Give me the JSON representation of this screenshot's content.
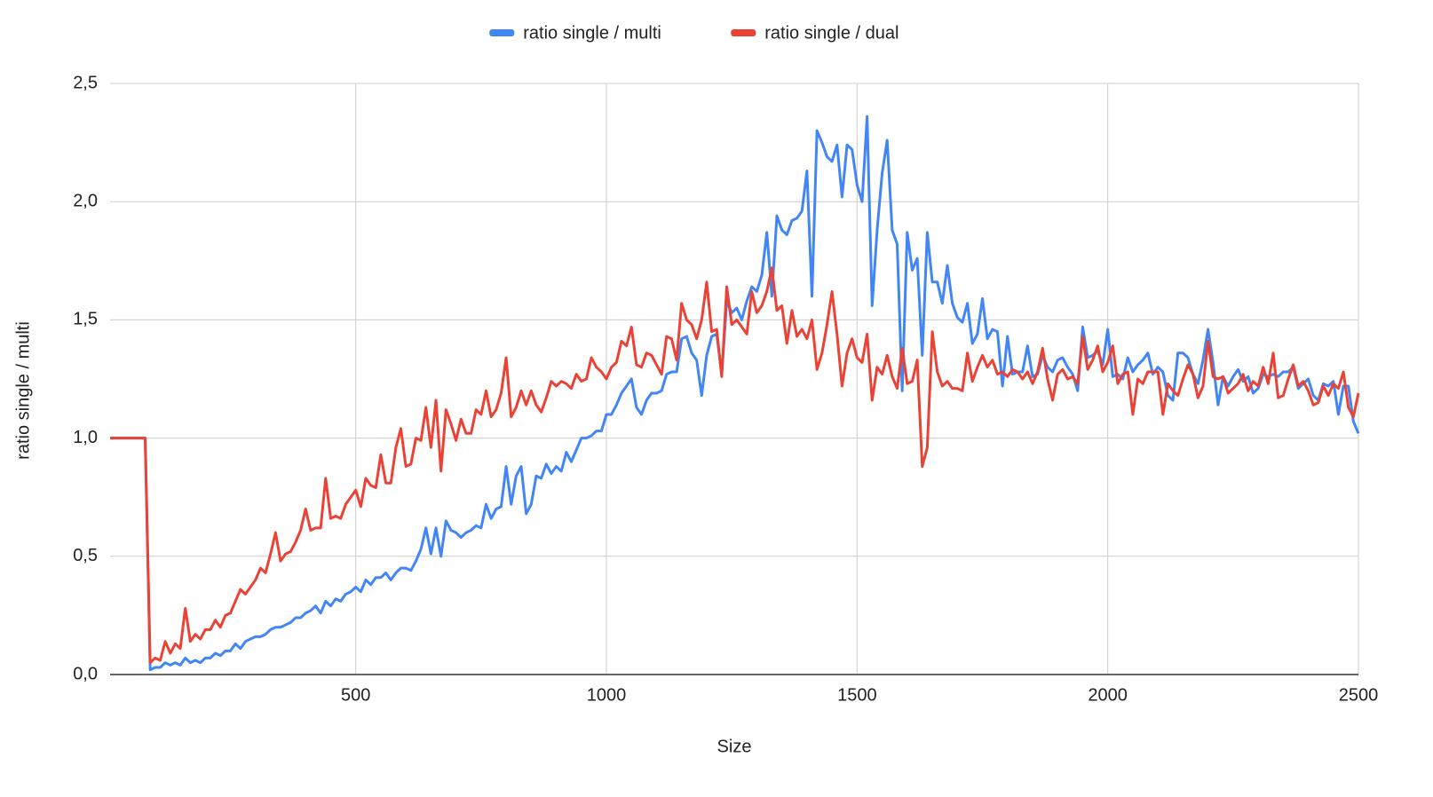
{
  "chart_data": {
    "type": "line",
    "y_label": "ratio single / multi",
    "x_label": "Size",
    "xlim": [
      10,
      2500
    ],
    "xticks": [
      500,
      1000,
      1500,
      2000,
      2500
    ],
    "ylim": [
      0,
      2.5
    ],
    "yticks": [
      {
        "value": 0,
        "label": "0,0"
      },
      {
        "value": 0.5,
        "label": "0,5"
      },
      {
        "value": 1,
        "label": "1,0"
      },
      {
        "value": 1.5,
        "label": "1,5"
      },
      {
        "value": 2,
        "label": "2,0"
      },
      {
        "value": 2.5,
        "label": "2,5"
      }
    ],
    "grid": true,
    "legend": "top",
    "x": [
      10,
      20,
      30,
      40,
      50,
      60,
      70,
      80,
      90,
      100,
      110,
      120,
      130,
      140,
      150,
      160,
      170,
      180,
      190,
      200,
      210,
      220,
      230,
      240,
      250,
      260,
      270,
      280,
      290,
      300,
      310,
      320,
      330,
      340,
      350,
      360,
      370,
      380,
      390,
      400,
      410,
      420,
      430,
      440,
      450,
      460,
      470,
      480,
      490,
      500,
      510,
      520,
      530,
      540,
      550,
      560,
      570,
      580,
      590,
      600,
      610,
      620,
      630,
      640,
      650,
      660,
      670,
      680,
      690,
      700,
      710,
      720,
      730,
      740,
      750,
      760,
      770,
      780,
      790,
      800,
      810,
      820,
      830,
      840,
      850,
      860,
      870,
      880,
      890,
      900,
      910,
      920,
      930,
      940,
      950,
      960,
      970,
      980,
      990,
      1000,
      1010,
      1020,
      1030,
      1040,
      1050,
      1060,
      1070,
      1080,
      1090,
      1100,
      1110,
      1120,
      1130,
      1140,
      1150,
      1160,
      1170,
      1180,
      1190,
      1200,
      1210,
      1220,
      1230,
      1240,
      1250,
      1260,
      1270,
      1280,
      1290,
      1300,
      1310,
      1320,
      1330,
      1340,
      1350,
      1360,
      1370,
      1380,
      1390,
      1400,
      1410,
      1420,
      1430,
      1440,
      1450,
      1460,
      1470,
      1480,
      1490,
      1500,
      1510,
      1520,
      1530,
      1540,
      1550,
      1560,
      1570,
      1580,
      1590,
      1600,
      1610,
      1620,
      1630,
      1640,
      1650,
      1660,
      1670,
      1680,
      1690,
      1700,
      1710,
      1720,
      1730,
      1740,
      1750,
      1760,
      1770,
      1780,
      1790,
      1800,
      1810,
      1820,
      1830,
      1840,
      1850,
      1860,
      1870,
      1880,
      1890,
      1900,
      1910,
      1920,
      1930,
      1940,
      1950,
      1960,
      1970,
      1980,
      1990,
      2000,
      2010,
      2020,
      2030,
      2040,
      2050,
      2060,
      2070,
      2080,
      2090,
      2100,
      2110,
      2120,
      2130,
      2140,
      2150,
      2160,
      2170,
      2180,
      2190,
      2200,
      2210,
      2220,
      2230,
      2240,
      2250,
      2260,
      2270,
      2280,
      2290,
      2300,
      2310,
      2320,
      2330,
      2340,
      2350,
      2360,
      2370,
      2380,
      2390,
      2400,
      2410,
      2420,
      2430,
      2440,
      2450,
      2460,
      2470,
      2480,
      2490,
      2500
    ],
    "series": [
      {
        "name": "ratio single / multi",
        "color": "#4285f4",
        "values": [
          1,
          1,
          1,
          1,
          1,
          1,
          1,
          1,
          0.02,
          0.03,
          0.03,
          0.05,
          0.04,
          0.05,
          0.04,
          0.07,
          0.05,
          0.06,
          0.05,
          0.07,
          0.07,
          0.09,
          0.08,
          0.1,
          0.1,
          0.13,
          0.11,
          0.14,
          0.15,
          0.16,
          0.16,
          0.17,
          0.19,
          0.2,
          0.2,
          0.21,
          0.22,
          0.24,
          0.24,
          0.26,
          0.27,
          0.29,
          0.26,
          0.31,
          0.29,
          0.32,
          0.31,
          0.34,
          0.35,
          0.37,
          0.35,
          0.4,
          0.38,
          0.41,
          0.41,
          0.43,
          0.4,
          0.43,
          0.45,
          0.45,
          0.44,
          0.48,
          0.53,
          0.62,
          0.51,
          0.62,
          0.5,
          0.65,
          0.61,
          0.6,
          0.58,
          0.6,
          0.61,
          0.63,
          0.62,
          0.72,
          0.66,
          0.7,
          0.71,
          0.88,
          0.72,
          0.84,
          0.88,
          0.68,
          0.72,
          0.84,
          0.83,
          0.89,
          0.85,
          0.88,
          0.86,
          0.94,
          0.9,
          0.95,
          1.0,
          1.0,
          1.01,
          1.03,
          1.03,
          1.1,
          1.1,
          1.14,
          1.19,
          1.22,
          1.25,
          1.13,
          1.1,
          1.16,
          1.19,
          1.19,
          1.2,
          1.27,
          1.28,
          1.28,
          1.42,
          1.43,
          1.36,
          1.33,
          1.18,
          1.35,
          1.43,
          1.44,
          1.27,
          1.58,
          1.53,
          1.55,
          1.5,
          1.58,
          1.64,
          1.62,
          1.69,
          1.87,
          1.6,
          1.94,
          1.88,
          1.86,
          1.92,
          1.93,
          1.96,
          2.13,
          1.6,
          2.3,
          2.25,
          2.19,
          2.17,
          2.24,
          2.02,
          2.24,
          2.22,
          2.07,
          2.0,
          2.36,
          1.56,
          1.88,
          2.12,
          2.26,
          1.88,
          1.82,
          1.2,
          1.87,
          1.71,
          1.76,
          1.35,
          1.87,
          1.66,
          1.66,
          1.57,
          1.73,
          1.57,
          1.51,
          1.49,
          1.57,
          1.4,
          1.44,
          1.59,
          1.42,
          1.46,
          1.45,
          1.22,
          1.43,
          1.27,
          1.28,
          1.28,
          1.39,
          1.26,
          1.27,
          1.35,
          1.3,
          1.28,
          1.33,
          1.34,
          1.3,
          1.27,
          1.2,
          1.47,
          1.34,
          1.35,
          1.37,
          1.31,
          1.46,
          1.26,
          1.27,
          1.25,
          1.34,
          1.28,
          1.31,
          1.33,
          1.36,
          1.27,
          1.3,
          1.28,
          1.18,
          1.16,
          1.36,
          1.36,
          1.34,
          1.27,
          1.23,
          1.33,
          1.46,
          1.32,
          1.14,
          1.26,
          1.22,
          1.26,
          1.29,
          1.24,
          1.26,
          1.19,
          1.21,
          1.27,
          1.26,
          1.27,
          1.26,
          1.28,
          1.28,
          1.3,
          1.21,
          1.23,
          1.25,
          1.18,
          1.16,
          1.23,
          1.22,
          1.24,
          1.1,
          1.22,
          1.22,
          1.07,
          1.02
        ]
      },
      {
        "name": "ratio single / dual",
        "color": "#ea4335",
        "values": [
          1,
          1,
          1,
          1,
          1,
          1,
          1,
          1,
          0.05,
          0.07,
          0.06,
          0.14,
          0.09,
          0.13,
          0.11,
          0.28,
          0.14,
          0.17,
          0.15,
          0.19,
          0.19,
          0.23,
          0.2,
          0.25,
          0.26,
          0.31,
          0.36,
          0.34,
          0.37,
          0.4,
          0.45,
          0.43,
          0.51,
          0.6,
          0.48,
          0.51,
          0.52,
          0.56,
          0.61,
          0.7,
          0.61,
          0.62,
          0.62,
          0.83,
          0.66,
          0.67,
          0.66,
          0.72,
          0.75,
          0.78,
          0.71,
          0.83,
          0.8,
          0.79,
          0.93,
          0.81,
          0.81,
          0.96,
          1.04,
          0.88,
          0.89,
          1.0,
          0.99,
          1.13,
          0.96,
          1.16,
          0.86,
          1.12,
          1.06,
          0.99,
          1.08,
          1.02,
          1.02,
          1.12,
          1.1,
          1.2,
          1.09,
          1.12,
          1.19,
          1.34,
          1.09,
          1.13,
          1.2,
          1.14,
          1.2,
          1.14,
          1.11,
          1.17,
          1.24,
          1.22,
          1.24,
          1.23,
          1.21,
          1.27,
          1.24,
          1.25,
          1.34,
          1.3,
          1.28,
          1.25,
          1.3,
          1.32,
          1.41,
          1.39,
          1.47,
          1.31,
          1.3,
          1.36,
          1.35,
          1.31,
          1.27,
          1.43,
          1.42,
          1.33,
          1.57,
          1.5,
          1.48,
          1.42,
          1.5,
          1.66,
          1.45,
          1.46,
          1.26,
          1.64,
          1.48,
          1.5,
          1.47,
          1.44,
          1.62,
          1.53,
          1.56,
          1.62,
          1.72,
          1.54,
          1.56,
          1.4,
          1.54,
          1.43,
          1.46,
          1.42,
          1.5,
          1.29,
          1.36,
          1.48,
          1.62,
          1.44,
          1.22,
          1.36,
          1.42,
          1.34,
          1.32,
          1.44,
          1.16,
          1.3,
          1.27,
          1.35,
          1.26,
          1.21,
          1.38,
          1.23,
          1.24,
          1.33,
          0.88,
          0.96,
          1.45,
          1.28,
          1.22,
          1.24,
          1.21,
          1.21,
          1.2,
          1.36,
          1.24,
          1.3,
          1.35,
          1.3,
          1.33,
          1.27,
          1.28,
          1.26,
          1.29,
          1.28,
          1.25,
          1.28,
          1.23,
          1.28,
          1.38,
          1.25,
          1.16,
          1.27,
          1.29,
          1.25,
          1.26,
          1.23,
          1.43,
          1.29,
          1.33,
          1.39,
          1.28,
          1.32,
          1.39,
          1.23,
          1.27,
          1.28,
          1.1,
          1.25,
          1.23,
          1.28,
          1.28,
          1.28,
          1.1,
          1.23,
          1.2,
          1.18,
          1.25,
          1.31,
          1.27,
          1.17,
          1.22,
          1.41,
          1.26,
          1.25,
          1.26,
          1.19,
          1.21,
          1.23,
          1.27,
          1.2,
          1.24,
          1.22,
          1.3,
          1.23,
          1.36,
          1.17,
          1.18,
          1.25,
          1.31,
          1.22,
          1.24,
          1.2,
          1.14,
          1.15,
          1.22,
          1.18,
          1.23,
          1.21,
          1.28,
          1.13,
          1.09,
          1.19
        ]
      }
    ]
  }
}
